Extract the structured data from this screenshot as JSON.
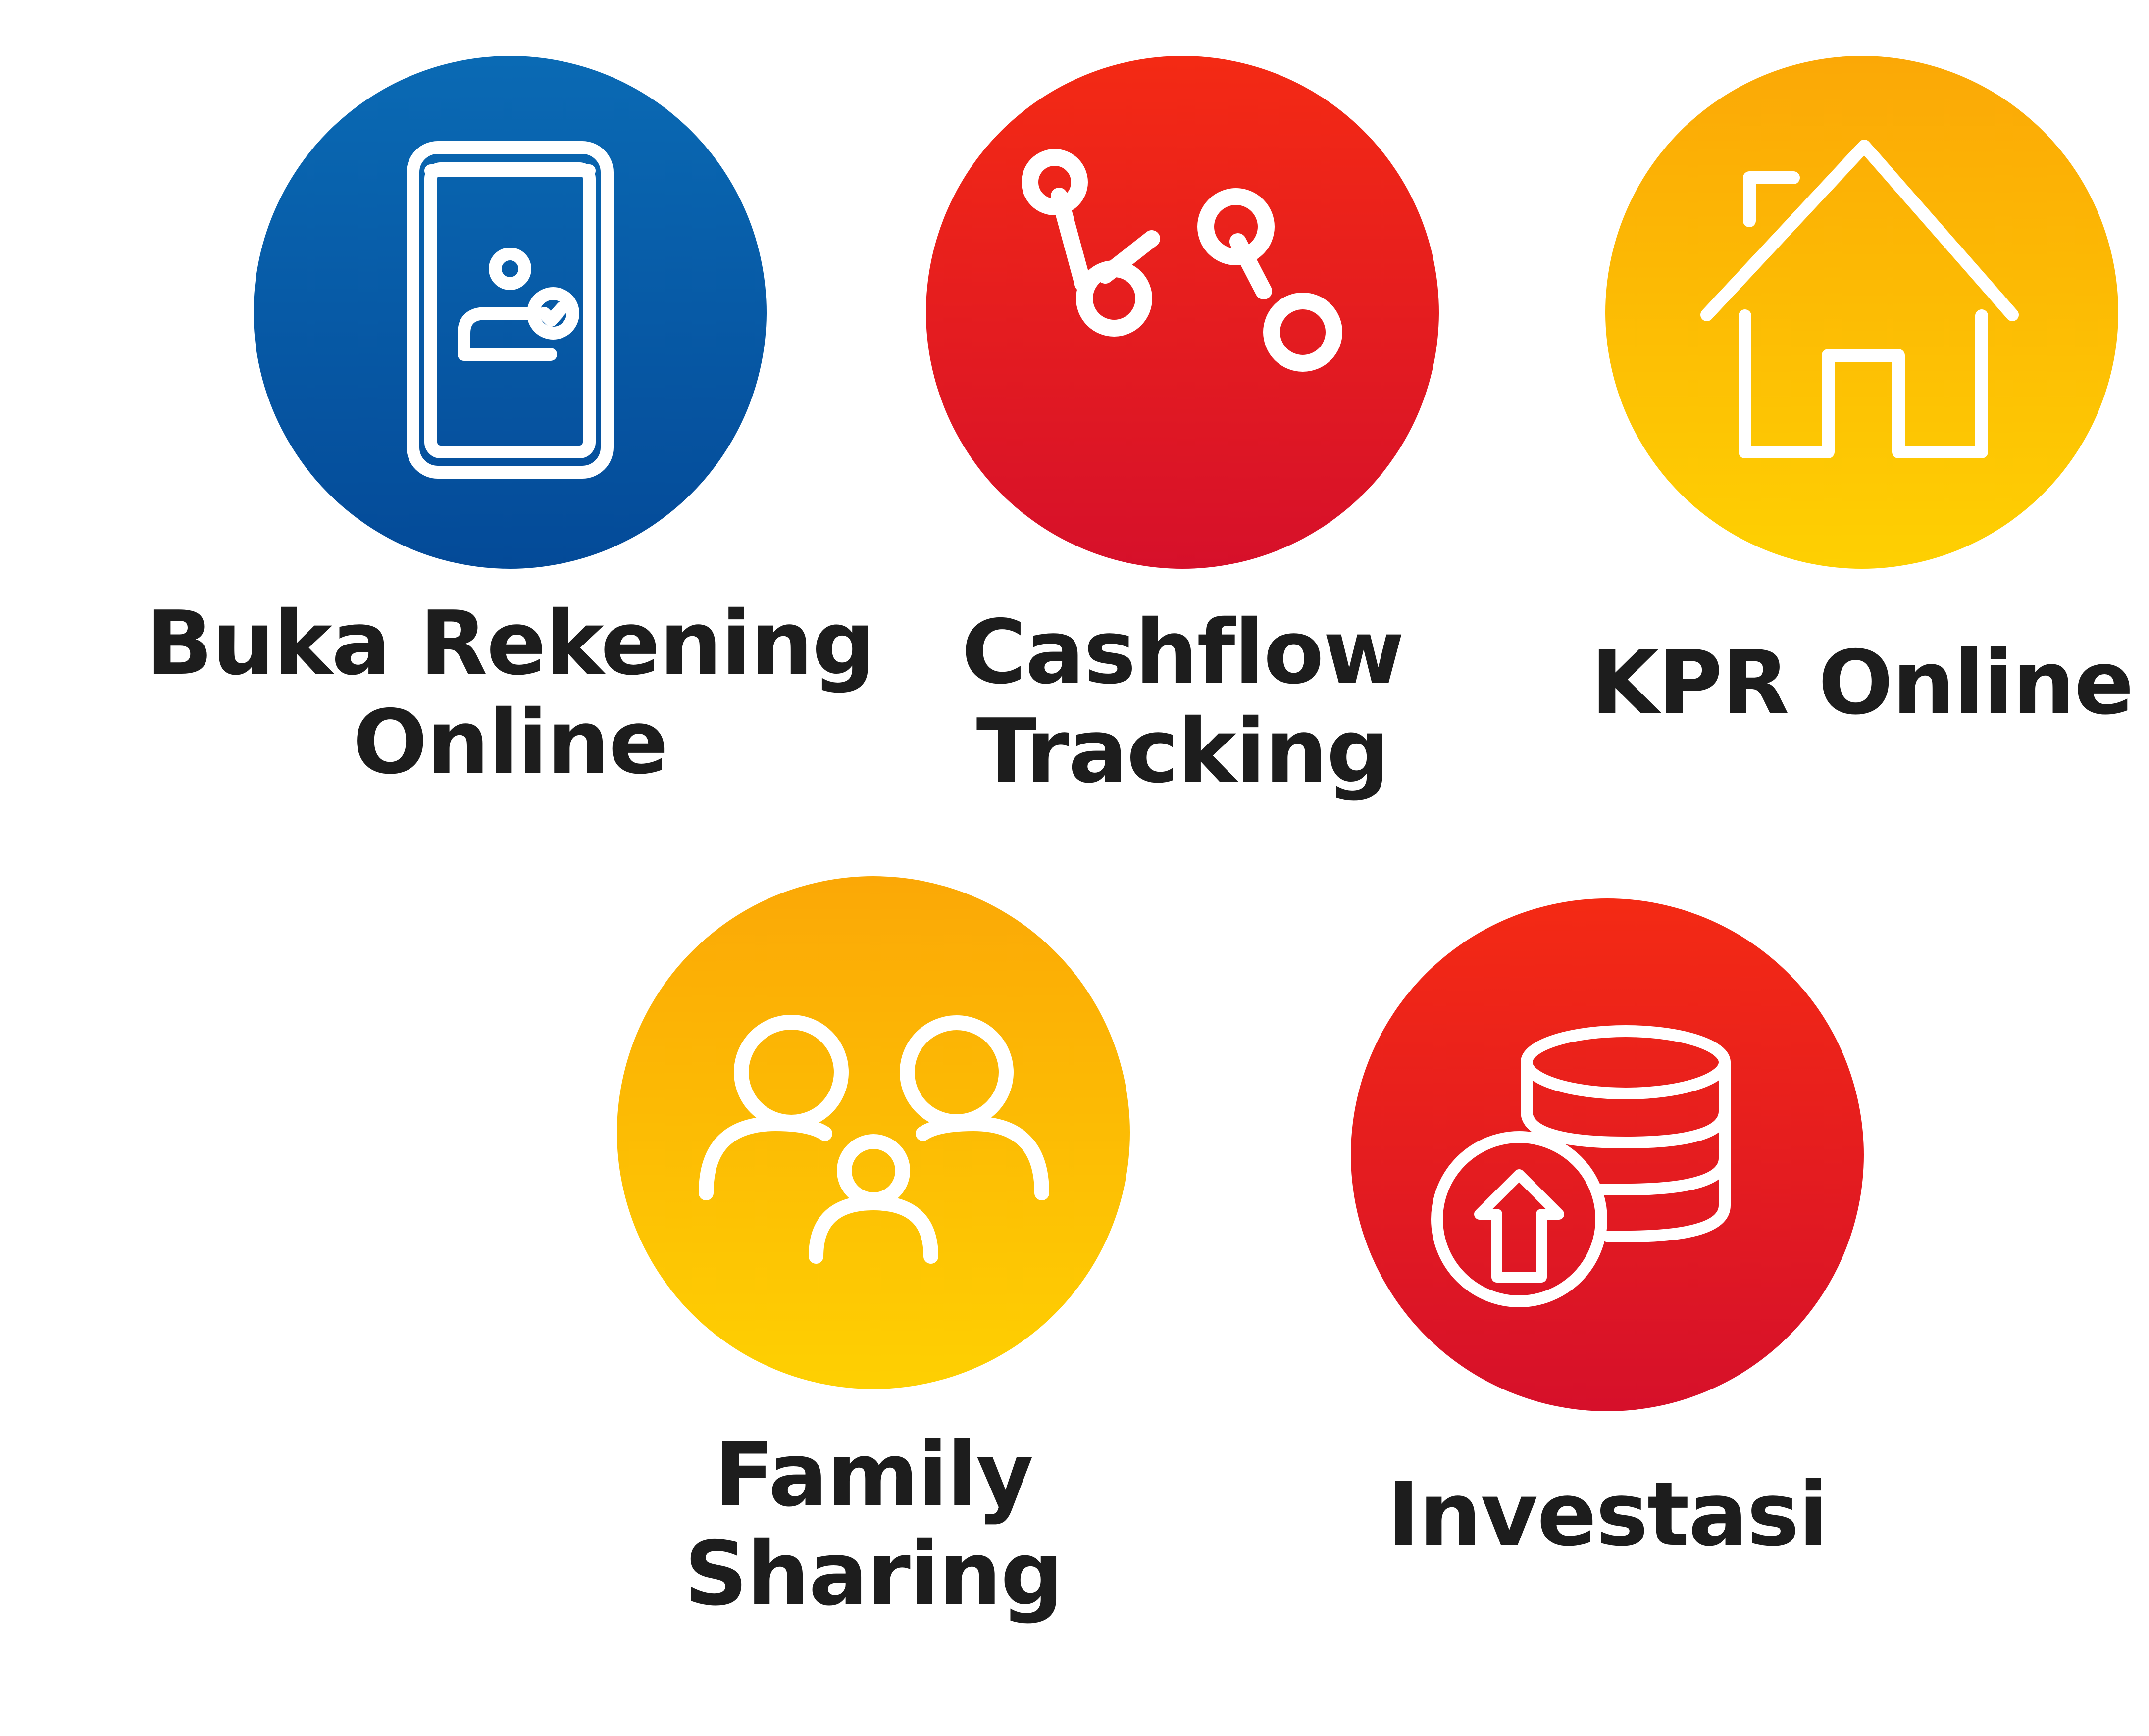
{
  "features": [
    {
      "id": "buka-rekening",
      "label_line1": "Buka Rekening",
      "label_line2": "Online",
      "icon": "mobile-account-check-icon",
      "color": "#0558a4"
    },
    {
      "id": "cashflow",
      "label_line1": "Cashflow",
      "label_line2": "Tracking",
      "icon": "line-graph-nodes-icon",
      "color": "#e51c1e"
    },
    {
      "id": "kpr",
      "label_line1": "KPR Online",
      "icon": "house-icon",
      "color": "#fcba04"
    },
    {
      "id": "family",
      "label_line1": "Family",
      "label_line2": "Sharing",
      "icon": "family-group-icon",
      "color": "#fcba04"
    },
    {
      "id": "investasi",
      "label_line1": "Investasi",
      "icon": "coin-stack-upload-icon",
      "color": "#e51c1e"
    }
  ]
}
